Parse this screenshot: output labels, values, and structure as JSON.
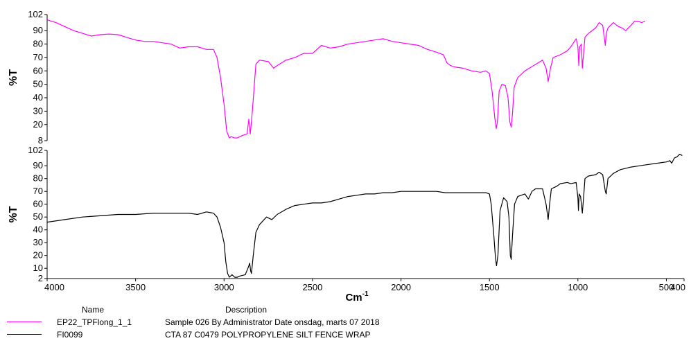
{
  "chart_data": [
    {
      "type": "line",
      "ylabel": "%T",
      "xlim": [
        4000,
        400
      ],
      "ylim": [
        8,
        102
      ],
      "yticks": [
        8,
        20,
        30,
        40,
        50,
        60,
        70,
        80,
        90,
        102
      ],
      "series": [
        {
          "name": "EP22_TPFlong_1_1",
          "color": "#ff00ff",
          "points": [
            [
              4000,
              98
            ],
            [
              3950,
              96
            ],
            [
              3900,
              93
            ],
            [
              3850,
              90
            ],
            [
              3800,
              88
            ],
            [
              3750,
              86
            ],
            [
              3700,
              87
            ],
            [
              3650,
              87.5
            ],
            [
              3600,
              87
            ],
            [
              3550,
              85
            ],
            [
              3500,
              83
            ],
            [
              3450,
              82
            ],
            [
              3400,
              82
            ],
            [
              3350,
              81
            ],
            [
              3300,
              80
            ],
            [
              3250,
              77
            ],
            [
              3200,
              78
            ],
            [
              3150,
              78
            ],
            [
              3100,
              76
            ],
            [
              3060,
              76
            ],
            [
              3040,
              70
            ],
            [
              3020,
              55
            ],
            [
              3000,
              35
            ],
            [
              2985,
              15
            ],
            [
              2970,
              10
            ],
            [
              2960,
              11
            ],
            [
              2940,
              10
            ],
            [
              2925,
              10
            ],
            [
              2910,
              11
            ],
            [
              2895,
              12
            ],
            [
              2870,
              13
            ],
            [
              2860,
              24
            ],
            [
              2852,
              13
            ],
            [
              2840,
              30
            ],
            [
              2820,
              65
            ],
            [
              2800,
              68
            ],
            [
              2750,
              67
            ],
            [
              2720,
              62
            ],
            [
              2700,
              64
            ],
            [
              2650,
              68
            ],
            [
              2600,
              70
            ],
            [
              2550,
              73
            ],
            [
              2500,
              73
            ],
            [
              2450,
              79
            ],
            [
              2400,
              77
            ],
            [
              2350,
              78
            ],
            [
              2300,
              80
            ],
            [
              2250,
              81
            ],
            [
              2200,
              82
            ],
            [
              2150,
              83
            ],
            [
              2100,
              84
            ],
            [
              2050,
              82
            ],
            [
              2000,
              81
            ],
            [
              1950,
              80
            ],
            [
              1900,
              79
            ],
            [
              1850,
              76
            ],
            [
              1800,
              74
            ],
            [
              1760,
              72
            ],
            [
              1740,
              66
            ],
            [
              1720,
              64
            ],
            [
              1700,
              63
            ],
            [
              1650,
              62
            ],
            [
              1600,
              60
            ],
            [
              1550,
              59
            ],
            [
              1520,
              60
            ],
            [
              1500,
              58
            ],
            [
              1485,
              45
            ],
            [
              1470,
              25
            ],
            [
              1462,
              17
            ],
            [
              1455,
              22
            ],
            [
              1445,
              45
            ],
            [
              1430,
              50
            ],
            [
              1410,
              49
            ],
            [
              1395,
              40
            ],
            [
              1385,
              22
            ],
            [
              1377,
              18
            ],
            [
              1370,
              28
            ],
            [
              1360,
              48
            ],
            [
              1340,
              55
            ],
            [
              1300,
              60
            ],
            [
              1250,
              64
            ],
            [
              1200,
              68
            ],
            [
              1180,
              62
            ],
            [
              1168,
              52
            ],
            [
              1155,
              62
            ],
            [
              1140,
              70
            ],
            [
              1100,
              72
            ],
            [
              1060,
              75
            ],
            [
              1040,
              78
            ],
            [
              1010,
              84
            ],
            [
              1000,
              78
            ],
            [
              995,
              64
            ],
            [
              990,
              78
            ],
            [
              980,
              80
            ],
            [
              975,
              62
            ],
            [
              970,
              70
            ],
            [
              960,
              85
            ],
            [
              940,
              88
            ],
            [
              900,
              92
            ],
            [
              880,
              96
            ],
            [
              860,
              94
            ],
            [
              850,
              84
            ],
            [
              845,
              79
            ],
            [
              840,
              88
            ],
            [
              830,
              92
            ],
            [
              800,
              96
            ],
            [
              770,
              93
            ],
            [
              750,
              92
            ],
            [
              730,
              90
            ],
            [
              700,
              94
            ],
            [
              680,
              97
            ],
            [
              660,
              97
            ],
            [
              640,
              96
            ],
            [
              620,
              97
            ]
          ]
        }
      ]
    },
    {
      "type": "line",
      "ylabel": "%T",
      "xlabel": "Cm",
      "xlabel_sup": "-1",
      "xlim": [
        4000,
        400
      ],
      "ylim": [
        2,
        102
      ],
      "yticks": [
        2,
        10,
        20,
        30,
        40,
        50,
        60,
        70,
        80,
        90,
        102
      ],
      "xticks": [
        4000,
        3500,
        3000,
        2500,
        2000,
        1500,
        1000,
        500,
        400
      ],
      "series": [
        {
          "name": "FI0099",
          "color": "#000000",
          "points": [
            [
              4000,
              46
            ],
            [
              3900,
              48
            ],
            [
              3800,
              50
            ],
            [
              3700,
              51
            ],
            [
              3600,
              52
            ],
            [
              3500,
              52
            ],
            [
              3400,
              53
            ],
            [
              3300,
              53
            ],
            [
              3200,
              53
            ],
            [
              3150,
              52
            ],
            [
              3100,
              54
            ],
            [
              3060,
              53
            ],
            [
              3040,
              50
            ],
            [
              3020,
              42
            ],
            [
              3000,
              30
            ],
            [
              2990,
              15
            ],
            [
              2980,
              6
            ],
            [
              2970,
              3
            ],
            [
              2955,
              5
            ],
            [
              2940,
              3
            ],
            [
              2925,
              3
            ],
            [
              2910,
              4
            ],
            [
              2880,
              5
            ],
            [
              2865,
              10
            ],
            [
              2855,
              14
            ],
            [
              2850,
              8
            ],
            [
              2845,
              6
            ],
            [
              2835,
              20
            ],
            [
              2820,
              38
            ],
            [
              2800,
              44
            ],
            [
              2760,
              50
            ],
            [
              2730,
              48
            ],
            [
              2700,
              52
            ],
            [
              2650,
              56
            ],
            [
              2600,
              59
            ],
            [
              2550,
              60
            ],
            [
              2500,
              61
            ],
            [
              2450,
              61
            ],
            [
              2400,
              62
            ],
            [
              2350,
              64
            ],
            [
              2300,
              66
            ],
            [
              2250,
              67
            ],
            [
              2200,
              68
            ],
            [
              2150,
              68
            ],
            [
              2100,
              69
            ],
            [
              2050,
              69
            ],
            [
              2000,
              70
            ],
            [
              1950,
              70
            ],
            [
              1900,
              70
            ],
            [
              1850,
              70
            ],
            [
              1800,
              70
            ],
            [
              1750,
              69
            ],
            [
              1700,
              69
            ],
            [
              1650,
              69
            ],
            [
              1600,
              69
            ],
            [
              1550,
              69
            ],
            [
              1520,
              69
            ],
            [
              1500,
              68
            ],
            [
              1490,
              60
            ],
            [
              1475,
              35
            ],
            [
              1466,
              18
            ],
            [
              1460,
              12
            ],
            [
              1452,
              20
            ],
            [
              1440,
              55
            ],
            [
              1420,
              65
            ],
            [
              1400,
              62
            ],
            [
              1390,
              50
            ],
            [
              1382,
              20
            ],
            [
              1377,
              17
            ],
            [
              1370,
              35
            ],
            [
              1358,
              60
            ],
            [
              1340,
              66
            ],
            [
              1300,
              68
            ],
            [
              1280,
              64
            ],
            [
              1260,
              70
            ],
            [
              1240,
              72
            ],
            [
              1200,
              72
            ],
            [
              1180,
              60
            ],
            [
              1168,
              48
            ],
            [
              1160,
              60
            ],
            [
              1150,
              72
            ],
            [
              1120,
              74
            ],
            [
              1100,
              76
            ],
            [
              1060,
              77
            ],
            [
              1040,
              76
            ],
            [
              1010,
              77
            ],
            [
              1000,
              65
            ],
            [
              997,
              55
            ],
            [
              993,
              68
            ],
            [
              985,
              66
            ],
            [
              975,
              53
            ],
            [
              968,
              65
            ],
            [
              960,
              80
            ],
            [
              940,
              82
            ],
            [
              900,
              83
            ],
            [
              880,
              85
            ],
            [
              860,
              83
            ],
            [
              845,
              70
            ],
            [
              840,
              68
            ],
            [
              830,
              80
            ],
            [
              800,
              84
            ],
            [
              760,
              87
            ],
            [
              700,
              89
            ],
            [
              650,
              90
            ],
            [
              600,
              91
            ],
            [
              550,
              92
            ],
            [
              500,
              93
            ],
            [
              480,
              94
            ],
            [
              470,
              92
            ],
            [
              455,
              96
            ],
            [
              440,
              97
            ],
            [
              425,
              99
            ],
            [
              410,
              98
            ]
          ]
        }
      ]
    }
  ],
  "legend": {
    "header_name": "Name",
    "header_desc": "Description",
    "rows": [
      {
        "name": "EP22_TPFlong_1_1",
        "desc": "Sample 026 By Administrator Date onsdag, marts 07 2018",
        "color": "#ff00ff"
      },
      {
        "name": "FI0099",
        "desc": "CTA 87 C0479 POLYPROPYLENE SILT FENCE WRAP",
        "color": "#000000"
      }
    ]
  }
}
